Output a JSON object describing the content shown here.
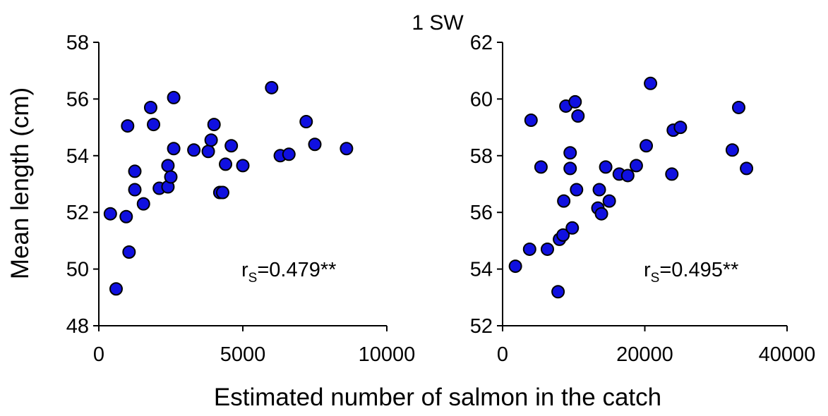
{
  "chart_data": {
    "type": "scatter",
    "title": "1 SW",
    "xlabel": "Estimated number of salmon in the catch",
    "ylabel": "Mean length (cm)",
    "marker_color": "#1010e0",
    "marker_edge_color": "#000000",
    "grid": false,
    "legend": "none",
    "panels": [
      {
        "id": "left",
        "xlim": [
          0,
          10000
        ],
        "ylim": [
          48,
          58
        ],
        "xticks": [
          0,
          5000,
          10000
        ],
        "yticks": [
          48,
          50,
          52,
          54,
          56,
          58
        ],
        "annotation": {
          "main": "r",
          "sub": "S",
          "value": "=0.479**"
        },
        "points": [
          [
            400,
            51.95
          ],
          [
            600,
            49.3
          ],
          [
            950,
            51.85
          ],
          [
            1000,
            55.05
          ],
          [
            1050,
            50.6
          ],
          [
            1250,
            52.8
          ],
          [
            1250,
            53.45
          ],
          [
            1550,
            52.3
          ],
          [
            1800,
            55.7
          ],
          [
            1900,
            55.1
          ],
          [
            2100,
            52.85
          ],
          [
            2400,
            52.9
          ],
          [
            2400,
            53.65
          ],
          [
            2500,
            53.25
          ],
          [
            2600,
            54.25
          ],
          [
            2600,
            56.05
          ],
          [
            3300,
            54.2
          ],
          [
            3800,
            54.15
          ],
          [
            3900,
            54.55
          ],
          [
            4000,
            55.1
          ],
          [
            4200,
            52.7
          ],
          [
            4300,
            52.7
          ],
          [
            4400,
            53.7
          ],
          [
            4600,
            54.35
          ],
          [
            5000,
            53.65
          ],
          [
            6000,
            56.4
          ],
          [
            6300,
            54.0
          ],
          [
            6600,
            54.05
          ],
          [
            7200,
            55.2
          ],
          [
            7500,
            54.4
          ],
          [
            8600,
            54.25
          ]
        ]
      },
      {
        "id": "right",
        "xlim": [
          0,
          40000
        ],
        "ylim": [
          52,
          62
        ],
        "xticks": [
          0,
          20000,
          40000
        ],
        "yticks": [
          52,
          54,
          56,
          58,
          60,
          62
        ],
        "annotation": {
          "main": "r",
          "sub": "S",
          "value": "=0.495**"
        },
        "points": [
          [
            1800,
            54.1
          ],
          [
            3800,
            54.7
          ],
          [
            4000,
            59.25
          ],
          [
            5400,
            57.6
          ],
          [
            6300,
            54.7
          ],
          [
            7800,
            53.2
          ],
          [
            8000,
            55.05
          ],
          [
            8500,
            55.2
          ],
          [
            8600,
            56.4
          ],
          [
            8900,
            59.75
          ],
          [
            9500,
            58.1
          ],
          [
            9500,
            57.55
          ],
          [
            9800,
            55.45
          ],
          [
            10200,
            59.9
          ],
          [
            10400,
            56.8
          ],
          [
            10600,
            59.4
          ],
          [
            13400,
            56.15
          ],
          [
            13600,
            56.8
          ],
          [
            13900,
            55.95
          ],
          [
            14500,
            57.6
          ],
          [
            15000,
            56.4
          ],
          [
            16400,
            57.35
          ],
          [
            17600,
            57.3
          ],
          [
            18800,
            57.65
          ],
          [
            20200,
            58.35
          ],
          [
            20800,
            60.55
          ],
          [
            23800,
            57.35
          ],
          [
            24000,
            58.9
          ],
          [
            25000,
            59.0
          ],
          [
            32300,
            58.2
          ],
          [
            33200,
            59.7
          ],
          [
            34300,
            57.55
          ]
        ]
      }
    ]
  }
}
